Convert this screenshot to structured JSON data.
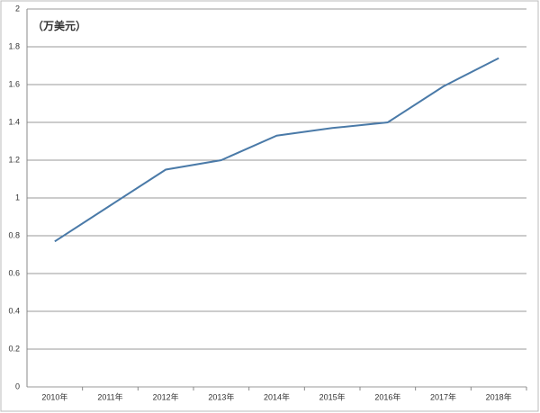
{
  "chart_data": {
    "type": "line",
    "annotation": "（万美元）",
    "categories": [
      "2010年",
      "2011年",
      "2012年",
      "2013年",
      "2014年",
      "2015年",
      "2016年",
      "2017年",
      "2018年"
    ],
    "series": [
      {
        "color": "#4a7aa8",
        "values": [
          0.77,
          0.96,
          1.15,
          1.2,
          1.33,
          1.37,
          1.4,
          1.59,
          1.74
        ]
      }
    ],
    "ylim": [
      0,
      2
    ],
    "yticks": [
      0,
      0.2,
      0.4,
      0.6,
      0.8,
      1,
      1.2,
      1.4,
      1.6,
      1.8,
      2
    ],
    "grid": true
  }
}
